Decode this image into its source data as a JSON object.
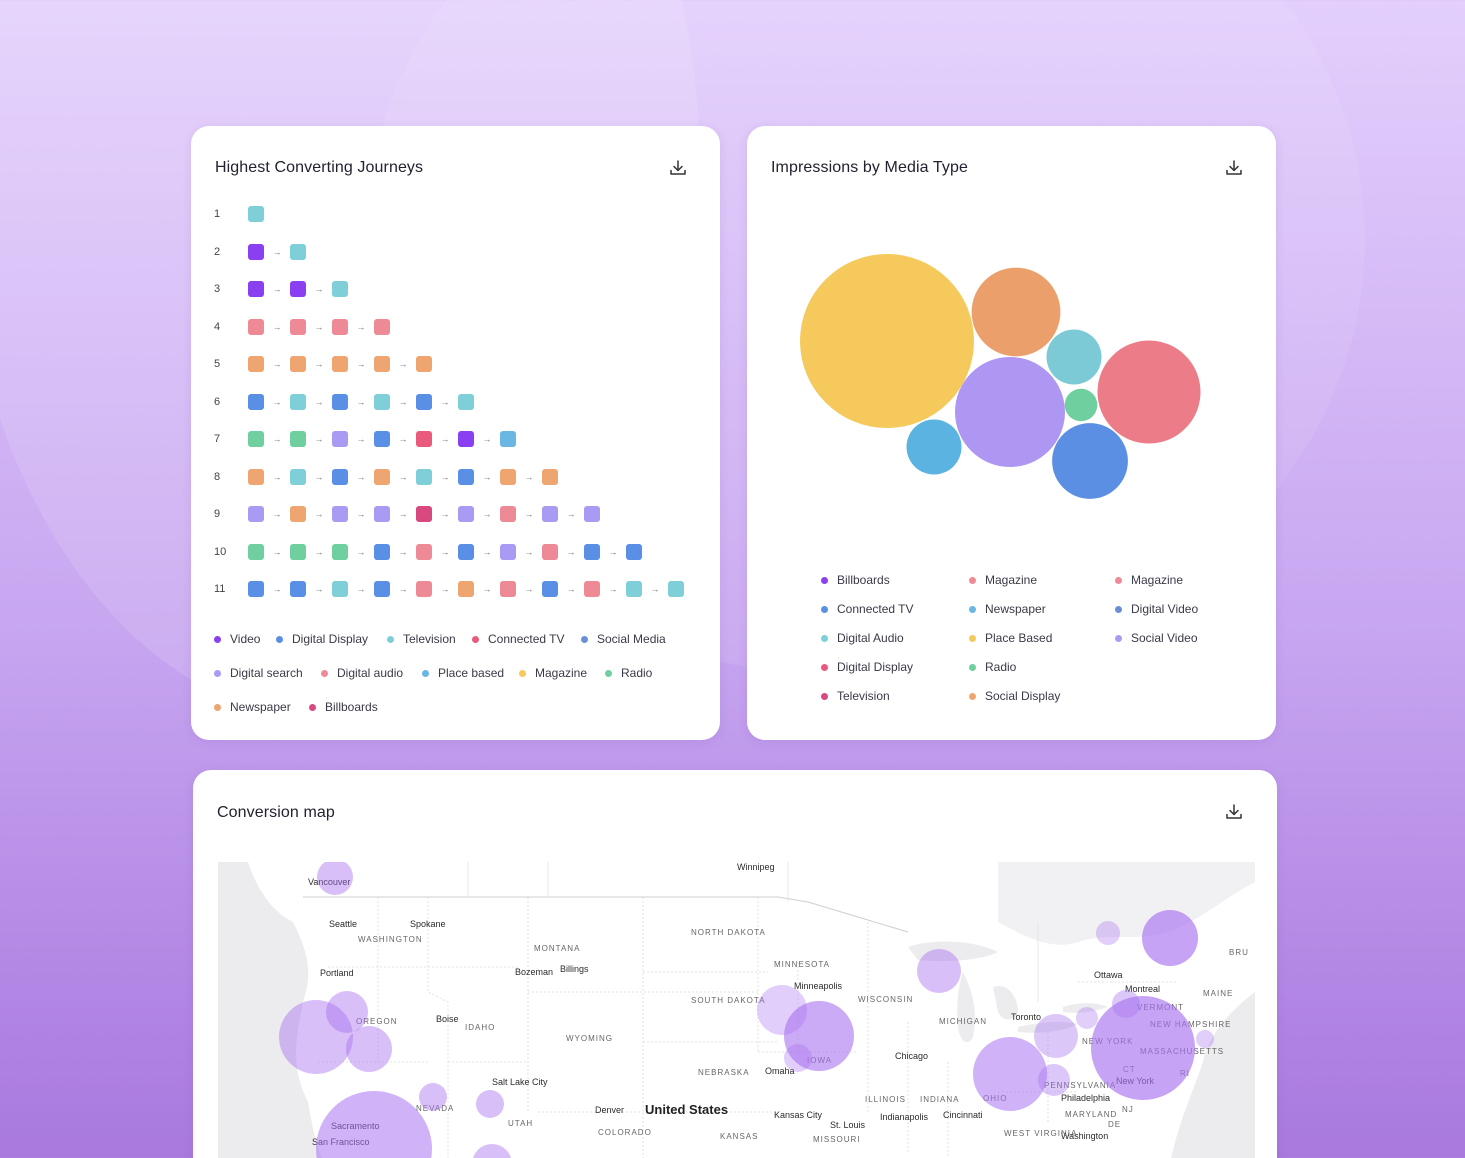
{
  "journeys": {
    "title": "Highest Converting Journeys",
    "rows": [
      {
        "num": "1",
        "steps": [
          "#7fcfd9"
        ]
      },
      {
        "num": "2",
        "steps": [
          "#8a3ff0",
          "#7fcfd9"
        ]
      },
      {
        "num": "3",
        "steps": [
          "#8a3ff0",
          "#8a3ff0",
          "#7fcfd9"
        ]
      },
      {
        "num": "4",
        "steps": [
          "#ee8a95",
          "#ee8a95",
          "#ee8a95",
          "#ee8a95"
        ]
      },
      {
        "num": "5",
        "steps": [
          "#eea56f",
          "#eea56f",
          "#eea56f",
          "#eea56f",
          "#eea56f"
        ]
      },
      {
        "num": "6",
        "steps": [
          "#5a8fe6",
          "#7fcfd9",
          "#5a8fe6",
          "#7fcfd9",
          "#5a8fe6",
          "#7fcfd9"
        ]
      },
      {
        "num": "7",
        "steps": [
          "#6fcf9f",
          "#6fcf9f",
          "#a99bf3",
          "#5a8fe6",
          "#e95a7c",
          "#8a3ff0",
          "#6ab7e3"
        ]
      },
      {
        "num": "8",
        "steps": [
          "#eea56f",
          "#7fcfd9",
          "#5a8fe6",
          "#eea56f",
          "#7fcfd9",
          "#5a8fe6",
          "#eea56f",
          "#eea56f"
        ]
      },
      {
        "num": "9",
        "steps": [
          "#a99bf3",
          "#eea56f",
          "#a99bf3",
          "#a99bf3",
          "#d9487e",
          "#a99bf3",
          "#ee8a95",
          "#a99bf3",
          "#a99bf3"
        ]
      },
      {
        "num": "10",
        "steps": [
          "#6fcf9f",
          "#6fcf9f",
          "#6fcf9f",
          "#5a8fe6",
          "#ee8a95",
          "#5a8fe6",
          "#a99bf3",
          "#ee8a95",
          "#5a8fe6",
          "#5a8fe6"
        ]
      },
      {
        "num": "11",
        "steps": [
          "#5a8fe6",
          "#5a8fe6",
          "#7fcfd9",
          "#5a8fe6",
          "#ee8a95",
          "#eea56f",
          "#ee8a95",
          "#5a8fe6",
          "#ee8a95",
          "#7fcfd9",
          "#7fcfd9"
        ]
      }
    ],
    "legend": [
      {
        "label": "Video",
        "color": "#8a3ff0"
      },
      {
        "label": "Digital Display",
        "color": "#5a8fe6"
      },
      {
        "label": "Television",
        "color": "#7fcfd9"
      },
      {
        "label": "Connected TV",
        "color": "#e95a7c"
      },
      {
        "label": "Social Media",
        "color": "#6b8fd6"
      },
      {
        "label": "Digital search",
        "color": "#a99bf3"
      },
      {
        "label": "Digital audio",
        "color": "#ee8a95"
      },
      {
        "label": "Place based",
        "color": "#6ab7e3"
      },
      {
        "label": "Magazine",
        "color": "#f5c95c"
      },
      {
        "label": "Radio",
        "color": "#6fcf9f"
      },
      {
        "label": "Newspaper",
        "color": "#eea56f"
      },
      {
        "label": "Billboards",
        "color": "#d9487e"
      }
    ]
  },
  "impressions": {
    "title": "Impressions by Media Type",
    "bubbles": [
      {
        "color": "#f5c95c",
        "value": 100
      },
      {
        "color": "#eba06c",
        "value": 26
      },
      {
        "color": "#7ccad6",
        "value": 10
      },
      {
        "color": "#ec7c88",
        "value": 35
      },
      {
        "color": "#ad97f2",
        "value": 40
      },
      {
        "color": "#6fcf9f",
        "value": 3.5
      },
      {
        "color": "#5b8fe4",
        "value": 19
      },
      {
        "color": "#5ab3e0",
        "value": 10
      }
    ],
    "legend": [
      {
        "label": "Billboards",
        "color": "#8a3ff0"
      },
      {
        "label": "Magazine",
        "color": "#ee8a95"
      },
      {
        "label": "Magazine",
        "color": "#ee8a95"
      },
      {
        "label": "Connected TV",
        "color": "#5a8fe6"
      },
      {
        "label": "Newspaper",
        "color": "#6ab7e3"
      },
      {
        "label": "Digital Video",
        "color": "#6b8fd6"
      },
      {
        "label": "Digital Audio",
        "color": "#7fcfd9"
      },
      {
        "label": "Place Based",
        "color": "#f5c95c"
      },
      {
        "label": "Social Video",
        "color": "#a99bf3"
      },
      {
        "label": "Digital Display",
        "color": "#e95a7c"
      },
      {
        "label": "Radio",
        "color": "#6fcf9f"
      },
      {
        "label": "Television",
        "color": "#d9487e"
      },
      {
        "label": "Social Display",
        "color": "#eea56f"
      }
    ]
  },
  "map": {
    "title": "Conversion map",
    "country": "United States",
    "cities": [
      "Winnipeg",
      "Vancouver",
      "Seattle",
      "Spokane",
      "Portland",
      "Bozeman",
      "Billings",
      "Boise",
      "Minneapolis",
      "Ottawa",
      "Montreal",
      "Toronto",
      "Chicago",
      "Omaha",
      "Salt Lake City",
      "Sacramento",
      "San Francisco",
      "Denver",
      "Kansas City",
      "St. Louis",
      "Indianapolis",
      "Cincinnati",
      "New York",
      "Philadelphia",
      "Washington"
    ],
    "states": [
      "WASHINGTON",
      "MONTANA",
      "NORTH DAKOTA",
      "MINNESOTA",
      "SOUTH DAKOTA",
      "WISCONSIN",
      "OREGON",
      "IDAHO",
      "WYOMING",
      "MICHIGAN",
      "IOWA",
      "NEBRASKA",
      "NEVADA",
      "UTAH",
      "COLORADO",
      "KANSAS",
      "MISSOURI",
      "ILLINOIS",
      "INDIANA",
      "OHIO",
      "PENNSYLVANIA",
      "NEW YORK",
      "VERMONT",
      "NEW HAMPSHIRE",
      "MASSACHUSETTS",
      "MAINE",
      "MARYLAND",
      "WEST VIRGINIA",
      "CT",
      "RI",
      "NJ",
      "DE",
      "BRU"
    ],
    "bubble_color": "#a872f0"
  }
}
